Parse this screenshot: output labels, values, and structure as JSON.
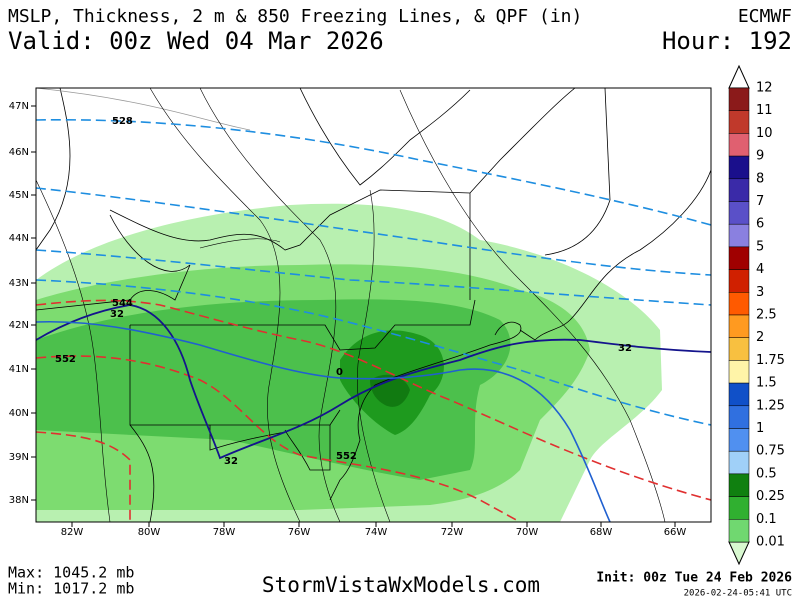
{
  "header": {
    "title": "MSLP, Thickness, 2 m & 850 Freezing Lines, & QPF (in)",
    "model": "ECMWF",
    "valid": "Valid: 00z Wed 04 Mar 2026",
    "hour": "Hour: 192"
  },
  "map": {
    "lat_labels": [
      "47N",
      "46N",
      "45N",
      "44N",
      "43N",
      "42N",
      "41N",
      "40N",
      "39N",
      "38N"
    ],
    "lon_labels": [
      "82W",
      "80W",
      "78W",
      "76W",
      "74W",
      "72W",
      "70W",
      "68W",
      "66W"
    ],
    "contour_labels": [
      "528",
      "544",
      "552",
      "552",
      "32",
      "32",
      "32",
      "0"
    ]
  },
  "colorbar": {
    "labels": [
      "12",
      "11",
      "10",
      "9",
      "8",
      "7",
      "6",
      "5",
      "4",
      "3",
      "2.5",
      "2",
      "1.75",
      "1.5",
      "1.25",
      "1",
      "0.75",
      "0.5",
      "0.25",
      "0.1",
      "0.01"
    ],
    "colors": [
      "#8b1a1a",
      "#c0392b",
      "#e06070",
      "#1a0f8c",
      "#3a2aa8",
      "#5a50c8",
      "#8a80e0",
      "#a00000",
      "#d02000",
      "#ff5a00",
      "#ff9a20",
      "#f8c040",
      "#fff4a8",
      "#1050c8",
      "#3070e0",
      "#5090f0",
      "#a0d0f8",
      "#108010",
      "#30b030",
      "#70d870"
    ]
  },
  "footer": {
    "max": "Max: 1045.2 mb",
    "min": "Min: 1017.2 mb",
    "site": "StormVistaWxModels.com",
    "init": "Init: 00z Tue 24 Feb 2026",
    "timestamp": "2026-02-24-05:41 UTC"
  }
}
